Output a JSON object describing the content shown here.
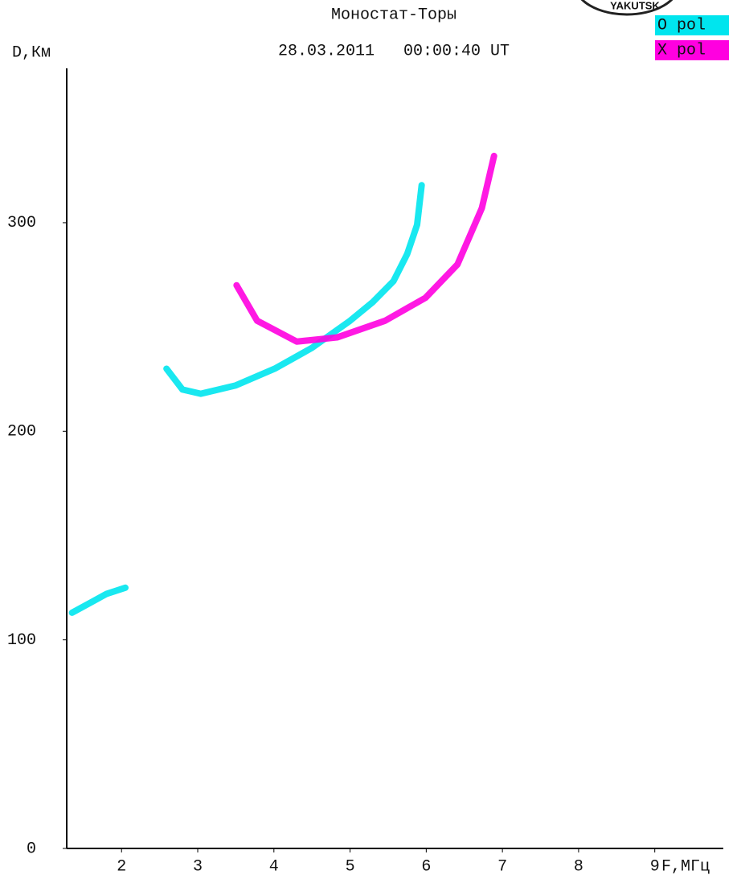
{
  "chart_data": {
    "type": "line",
    "title": "Моностат-Торы",
    "subtitle": "28.03.2011   00:00:40 UT",
    "logo_text": "YAKUTSK",
    "x_label": "F,МГц",
    "y_label": "D,Км",
    "xlim": [
      1.28,
      9.9
    ],
    "xticks": [
      2,
      3,
      4,
      5,
      6,
      7,
      8,
      9
    ],
    "ylim": [
      0,
      374
    ],
    "yticks": [
      0,
      100,
      200,
      300
    ],
    "grid": false,
    "series": [
      {
        "name": "O pol",
        "color": "#00e5ee",
        "x": [
          1.35,
          1.6,
          1.8,
          2.05,
          null,
          2.59,
          2.8,
          3.04,
          3.5,
          4.01,
          4.5,
          5.0,
          5.3,
          5.57,
          5.75,
          5.88,
          5.94
        ],
        "values": [
          113,
          118,
          122,
          125,
          null,
          230,
          220,
          218,
          222,
          230,
          240,
          253,
          262,
          272,
          285,
          299,
          318
        ]
      },
      {
        "name": "X pol",
        "color": "#ff00e0",
        "x": [
          3.51,
          3.78,
          4.3,
          4.83,
          5.46,
          5.99,
          6.41,
          6.73,
          6.89
        ],
        "values": [
          270,
          253,
          243,
          245,
          253,
          264,
          280,
          307,
          332
        ]
      }
    ]
  }
}
